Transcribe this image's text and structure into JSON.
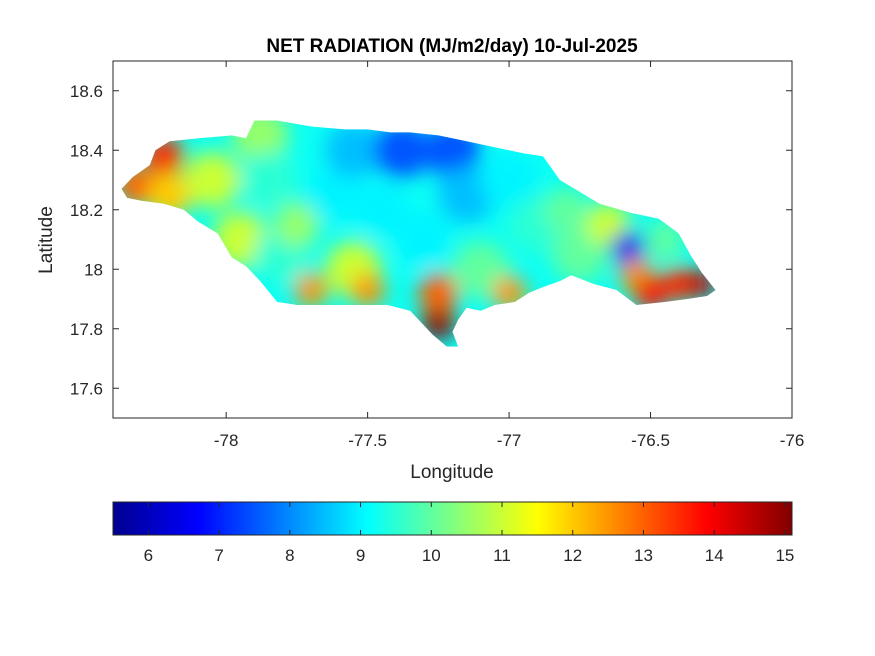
{
  "title": "NET RADIATION (MJ/m2/day) 10-Jul-2025",
  "chart_data": {
    "type": "heatmap",
    "title": "NET RADIATION (MJ/m2/day) 10-Jul-2025",
    "xlabel": "Longitude",
    "ylabel": "Latitude",
    "xlim": [
      -78.4,
      -76
    ],
    "ylim": [
      17.5,
      18.7
    ],
    "x_ticks": [
      -78,
      -77.5,
      -77,
      -76.5,
      -76
    ],
    "y_ticks": [
      17.6,
      17.8,
      18,
      18.2,
      18.4,
      18.6
    ],
    "grid": false,
    "colormap": "jet",
    "colorbar": {
      "position": "bottom",
      "range": [
        5.5,
        15.1
      ],
      "ticks": [
        6,
        7,
        8,
        9,
        10,
        11,
        12,
        13,
        14,
        15
      ]
    },
    "outline": [
      [
        -78.37,
        18.27
      ],
      [
        -78.33,
        18.31
      ],
      [
        -78.27,
        18.35
      ],
      [
        -78.25,
        18.4
      ],
      [
        -78.2,
        18.43
      ],
      [
        -78.1,
        18.44
      ],
      [
        -77.98,
        18.45
      ],
      [
        -77.93,
        18.44
      ],
      [
        -77.9,
        18.5
      ],
      [
        -77.82,
        18.5
      ],
      [
        -77.7,
        18.48
      ],
      [
        -77.58,
        18.47
      ],
      [
        -77.5,
        18.47
      ],
      [
        -77.42,
        18.46
      ],
      [
        -77.35,
        18.46
      ],
      [
        -77.25,
        18.45
      ],
      [
        -77.15,
        18.43
      ],
      [
        -77.05,
        18.41
      ],
      [
        -76.95,
        18.39
      ],
      [
        -76.88,
        18.38
      ],
      [
        -76.82,
        18.3
      ],
      [
        -76.75,
        18.26
      ],
      [
        -76.68,
        18.22
      ],
      [
        -76.57,
        18.19
      ],
      [
        -76.47,
        18.17
      ],
      [
        -76.4,
        18.12
      ],
      [
        -76.36,
        18.05
      ],
      [
        -76.32,
        17.99
      ],
      [
        -76.27,
        17.93
      ],
      [
        -76.3,
        17.91
      ],
      [
        -76.37,
        17.9
      ],
      [
        -76.45,
        17.89
      ],
      [
        -76.55,
        17.88
      ],
      [
        -76.62,
        17.93
      ],
      [
        -76.7,
        17.95
      ],
      [
        -76.78,
        17.98
      ],
      [
        -76.82,
        17.96
      ],
      [
        -76.88,
        17.94
      ],
      [
        -76.93,
        17.92
      ],
      [
        -76.98,
        17.89
      ],
      [
        -77.05,
        17.88
      ],
      [
        -77.1,
        17.86
      ],
      [
        -77.15,
        17.87
      ],
      [
        -77.18,
        17.83
      ],
      [
        -77.2,
        17.79
      ],
      [
        -77.18,
        17.74
      ],
      [
        -77.22,
        17.74
      ],
      [
        -77.27,
        17.78
      ],
      [
        -77.32,
        17.83
      ],
      [
        -77.35,
        17.86
      ],
      [
        -77.43,
        17.88
      ],
      [
        -77.55,
        17.88
      ],
      [
        -77.62,
        17.88
      ],
      [
        -77.7,
        17.88
      ],
      [
        -77.75,
        17.88
      ],
      [
        -77.82,
        17.89
      ],
      [
        -77.88,
        17.96
      ],
      [
        -77.93,
        18.01
      ],
      [
        -77.98,
        18.04
      ],
      [
        -78.03,
        18.12
      ],
      [
        -78.1,
        18.16
      ],
      [
        -78.15,
        18.2
      ],
      [
        -78.22,
        18.22
      ],
      [
        -78.3,
        18.23
      ],
      [
        -78.35,
        18.24
      ]
    ],
    "features": [
      {
        "lon": -78.22,
        "lat": 18.38,
        "value": 13.5,
        "radius": 0.07
      },
      {
        "lon": -78.32,
        "lat": 18.28,
        "value": 13.0,
        "radius": 0.07
      },
      {
        "lon": -78.2,
        "lat": 18.25,
        "value": 12.0,
        "radius": 0.08
      },
      {
        "lon": -78.05,
        "lat": 18.3,
        "value": 11.0,
        "radius": 0.1
      },
      {
        "lon": -77.95,
        "lat": 18.1,
        "value": 11.0,
        "radius": 0.1
      },
      {
        "lon": -77.88,
        "lat": 18.45,
        "value": 10.5,
        "radius": 0.1
      },
      {
        "lon": -77.85,
        "lat": 18.3,
        "value": 9.5,
        "radius": 0.1
      },
      {
        "lon": -77.8,
        "lat": 18.05,
        "value": 9.5,
        "radius": 0.1
      },
      {
        "lon": -77.75,
        "lat": 18.15,
        "value": 10.5,
        "radius": 0.08
      },
      {
        "lon": -77.7,
        "lat": 17.93,
        "value": 12.5,
        "radius": 0.06
      },
      {
        "lon": -77.62,
        "lat": 18.25,
        "value": 9.0,
        "radius": 0.1
      },
      {
        "lon": -77.55,
        "lat": 18.4,
        "value": 8.5,
        "radius": 0.1
      },
      {
        "lon": -77.55,
        "lat": 18.0,
        "value": 11.0,
        "radius": 0.1
      },
      {
        "lon": -77.5,
        "lat": 17.93,
        "value": 12.5,
        "radius": 0.06
      },
      {
        "lon": -77.45,
        "lat": 18.2,
        "value": 9.0,
        "radius": 0.1
      },
      {
        "lon": -77.38,
        "lat": 18.4,
        "value": 7.5,
        "radius": 0.1
      },
      {
        "lon": -77.3,
        "lat": 18.1,
        "value": 9.0,
        "radius": 0.1
      },
      {
        "lon": -77.25,
        "lat": 17.82,
        "value": 15.0,
        "radius": 0.06
      },
      {
        "lon": -77.25,
        "lat": 17.92,
        "value": 13.0,
        "radius": 0.07
      },
      {
        "lon": -77.2,
        "lat": 18.4,
        "value": 7.5,
        "radius": 0.1
      },
      {
        "lon": -77.15,
        "lat": 18.25,
        "value": 8.5,
        "radius": 0.1
      },
      {
        "lon": -77.1,
        "lat": 18.0,
        "value": 10.0,
        "radius": 0.1
      },
      {
        "lon": -77.0,
        "lat": 17.92,
        "value": 12.5,
        "radius": 0.06
      },
      {
        "lon": -77.0,
        "lat": 18.3,
        "value": 9.0,
        "radius": 0.1
      },
      {
        "lon": -76.9,
        "lat": 18.15,
        "value": 9.5,
        "radius": 0.1
      },
      {
        "lon": -76.8,
        "lat": 18.2,
        "value": 10.0,
        "radius": 0.08
      },
      {
        "lon": -76.75,
        "lat": 18.05,
        "value": 10.0,
        "radius": 0.1
      },
      {
        "lon": -76.65,
        "lat": 18.15,
        "value": 11.0,
        "radius": 0.08
      },
      {
        "lon": -76.58,
        "lat": 18.07,
        "value": 6.5,
        "radius": 0.06
      },
      {
        "lon": -76.45,
        "lat": 18.1,
        "value": 10.0,
        "radius": 0.07
      },
      {
        "lon": -76.55,
        "lat": 17.98,
        "value": 12.5,
        "radius": 0.06
      },
      {
        "lon": -76.5,
        "lat": 17.92,
        "value": 13.8,
        "radius": 0.06
      },
      {
        "lon": -76.4,
        "lat": 17.95,
        "value": 13.5,
        "radius": 0.06
      },
      {
        "lon": -76.32,
        "lat": 17.95,
        "value": 14.5,
        "radius": 0.05
      }
    ],
    "background_value": 9.2
  }
}
